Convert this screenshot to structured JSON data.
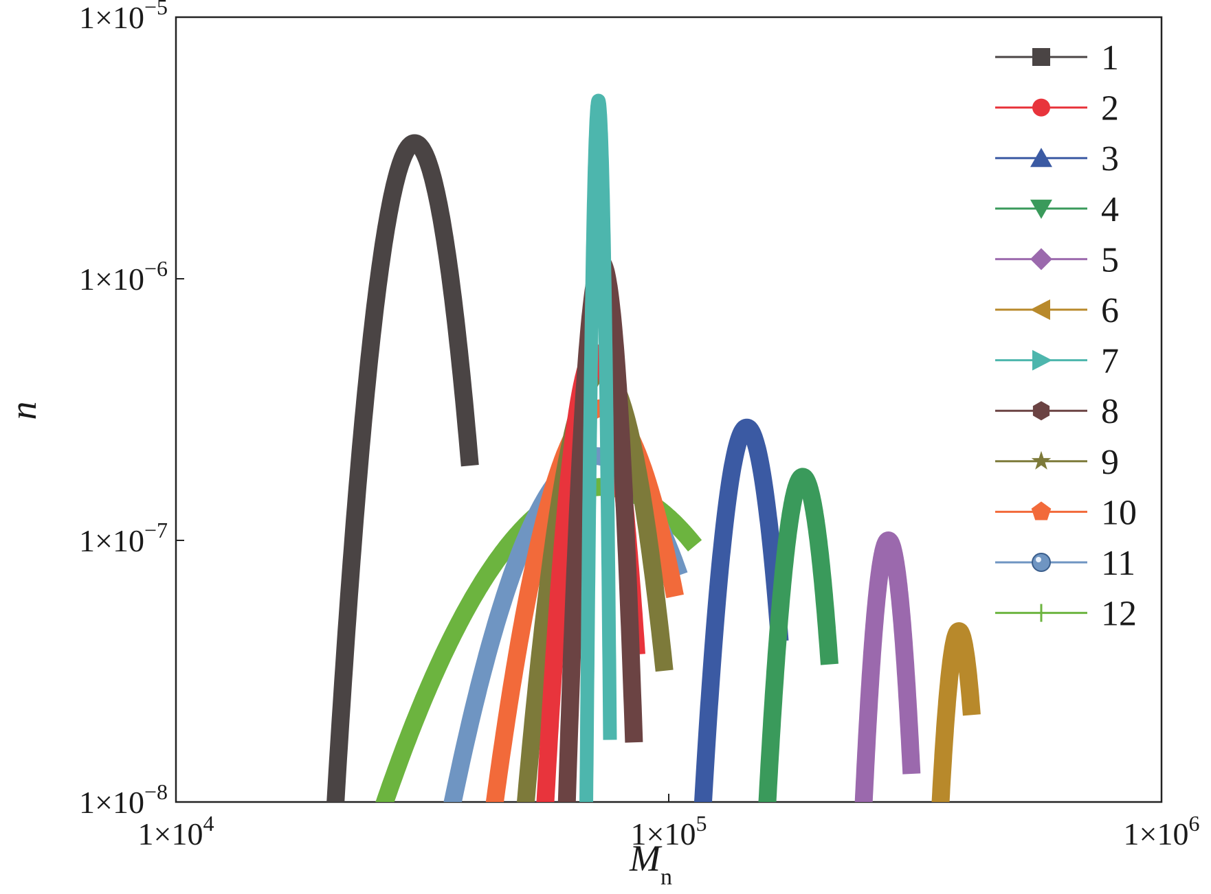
{
  "chart_data": {
    "type": "line",
    "x_scale": "log",
    "y_scale": "log",
    "xlim": [
      10000,
      1000000
    ],
    "ylim": [
      1e-08,
      1e-05
    ],
    "xlabel": "M",
    "xlabel_sub": "n",
    "ylabel": "n",
    "x_ticks": [
      {
        "value": 10000,
        "mantissa": "1×10",
        "exp": "4"
      },
      {
        "value": 100000,
        "mantissa": "1×10",
        "exp": "5"
      },
      {
        "value": 1000000,
        "mantissa": "1×10",
        "exp": "6"
      }
    ],
    "y_ticks": [
      {
        "value": 1e-05,
        "mantissa": "1×10",
        "exp": "−5"
      },
      {
        "value": 1e-06,
        "mantissa": "1×10",
        "exp": "−6"
      },
      {
        "value": 1e-07,
        "mantissa": "1×10",
        "exp": "−7"
      },
      {
        "value": 1e-08,
        "mantissa": "1×10",
        "exp": "−8"
      }
    ],
    "grid": false,
    "legend_position": "top-right",
    "series": [
      {
        "name": "1",
        "color": "#4a4444",
        "marker": "square",
        "peak_x": 30500,
        "peak_y": 3.3e-06,
        "x_start": 21000,
        "x_end": 39500
      },
      {
        "name": "2",
        "color": "#e8343c",
        "marker": "circle",
        "peak_x": 71000,
        "peak_y": 5.2e-07,
        "x_start": 56000,
        "x_end": 86000
      },
      {
        "name": "3",
        "color": "#3b5aa3",
        "marker": "triangle-up",
        "peak_x": 144000,
        "peak_y": 2.7e-07,
        "x_start": 117000,
        "x_end": 168000
      },
      {
        "name": "4",
        "color": "#3a9a5b",
        "marker": "triangle-down",
        "peak_x": 187000,
        "peak_y": 1.75e-07,
        "x_start": 158000,
        "x_end": 212000
      },
      {
        "name": "5",
        "color": "#9b69ad",
        "marker": "diamond",
        "peak_x": 279000,
        "peak_y": 1e-07,
        "x_start": 248000,
        "x_end": 311000
      },
      {
        "name": "6",
        "color": "#b8892b",
        "marker": "triangle-left",
        "peak_x": 388000,
        "peak_y": 4.5e-08,
        "x_start": 355000,
        "x_end": 412000
      },
      {
        "name": "7",
        "color": "#4db6ad",
        "marker": "triangle-right",
        "peak_x": 72000,
        "peak_y": 4.8e-06,
        "x_start": 68000,
        "x_end": 76000
      },
      {
        "name": "8",
        "color": "#6b4343",
        "marker": "hexagon",
        "peak_x": 73000,
        "peak_y": 1.15e-06,
        "x_start": 62000,
        "x_end": 85000
      },
      {
        "name": "9",
        "color": "#7d7a3a",
        "marker": "star",
        "peak_x": 73000,
        "peak_y": 4.4e-07,
        "x_start": 51000,
        "x_end": 98000
      },
      {
        "name": "10",
        "color": "#f26a3a",
        "marker": "pentagon",
        "peak_x": 73000,
        "peak_y": 3.2e-07,
        "x_start": 44000,
        "x_end": 103000
      },
      {
        "name": "11",
        "color": "#6f95c2",
        "marker": "sphere",
        "peak_x": 71000,
        "peak_y": 2.1e-07,
        "x_start": 36000,
        "x_end": 105000
      },
      {
        "name": "12",
        "color": "#6cb43f",
        "marker": "vline",
        "peak_x": 73000,
        "peak_y": 1.6e-07,
        "x_start": 26000,
        "x_end": 113000
      }
    ]
  }
}
